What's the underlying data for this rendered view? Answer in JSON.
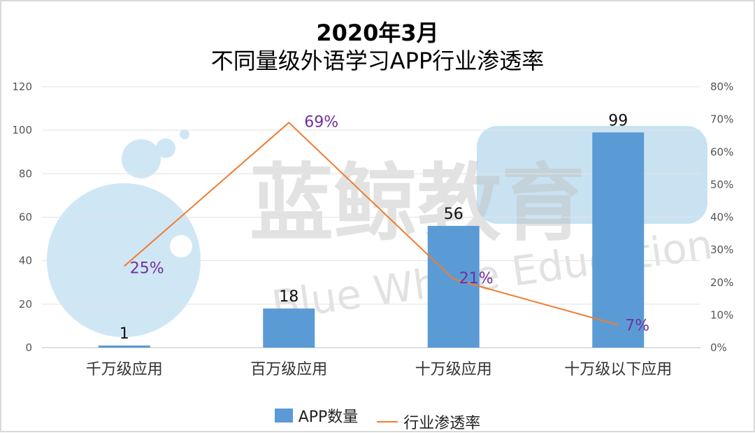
{
  "title": {
    "line1": "2020年3月",
    "line2": "不同量级外语学习APP行业渗透率"
  },
  "watermark": {
    "text_cn": "蓝鲸教育",
    "text_en": "Blue Whale Education",
    "color": "#9dcbe8"
  },
  "chart_data": {
    "type": "bar",
    "categories": [
      "千万级应用",
      "百万级应用",
      "十万级应用",
      "十万级以下应用"
    ],
    "series": [
      {
        "name": "APP数量",
        "type": "bar",
        "axis": "left",
        "values": [
          1,
          18,
          56,
          99
        ],
        "labels": [
          "1",
          "18",
          "56",
          "99"
        ],
        "color": "#5b9bd5"
      },
      {
        "name": "行业渗透率",
        "type": "line",
        "axis": "right",
        "values": [
          25,
          69,
          21,
          7
        ],
        "labels": [
          "25%",
          "69%",
          "21%",
          "7%"
        ],
        "color": "#ed7d31"
      }
    ],
    "ylim_left": [
      0,
      120
    ],
    "ylim_right": [
      0,
      80
    ],
    "left_ticks": [
      "0",
      "20",
      "40",
      "60",
      "80",
      "100",
      "120"
    ],
    "right_ticks": [
      "0%",
      "10%",
      "20%",
      "30%",
      "40%",
      "50%",
      "60%",
      "70%",
      "80%"
    ],
    "grid": true,
    "legend_position": "bottom"
  }
}
